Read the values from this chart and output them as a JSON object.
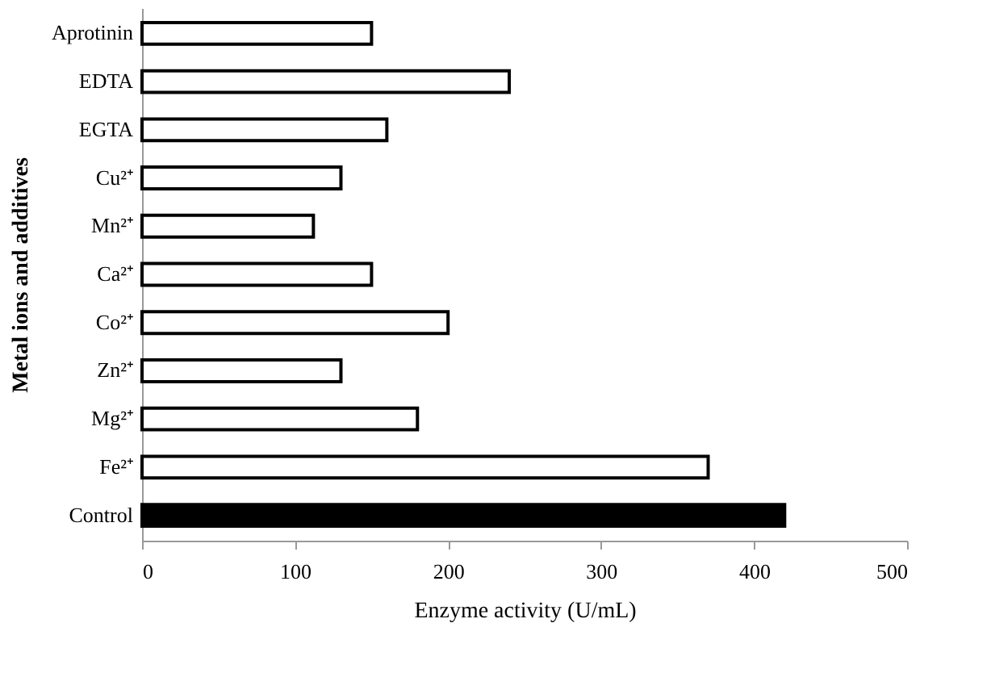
{
  "chart_data": {
    "type": "bar",
    "orientation": "horizontal",
    "categories": [
      "Aprotinin",
      "EDTA",
      "EGTA",
      "Cu²⁺",
      "Mn²⁺",
      "Ca²⁺",
      "Co²⁺",
      "Zn²⁺",
      "Mg²⁺",
      "Fe²⁺",
      "Control"
    ],
    "values": [
      150,
      240,
      160,
      130,
      112,
      150,
      200,
      130,
      180,
      370,
      420
    ],
    "colors": [
      "#ffffff",
      "#ffffff",
      "#ffffff",
      "#ffffff",
      "#ffffff",
      "#ffffff",
      "#ffffff",
      "#ffffff",
      "#ffffff",
      "#ffffff",
      "#000000"
    ],
    "xlabel": "Enzyme activity (U/mL)",
    "ylabel": "Metal ions and additives",
    "xlim": [
      0,
      500
    ],
    "xticks": [
      0,
      100,
      200,
      300,
      400,
      500
    ],
    "grid": false
  }
}
